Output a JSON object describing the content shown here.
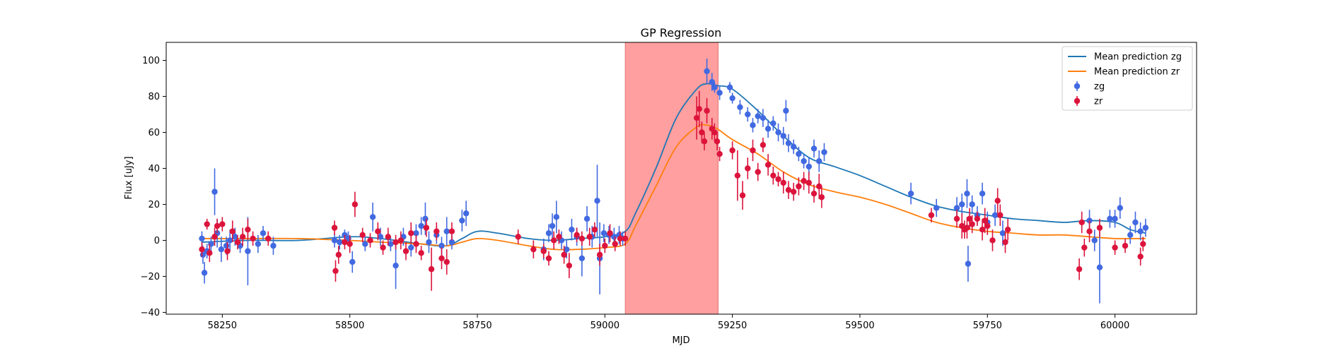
{
  "chart_data": {
    "type": "scatter",
    "title": "GP Regression",
    "xlabel": "MJD",
    "ylabel": "Flux [uJy]",
    "xlim": [
      58140,
      60160
    ],
    "ylim": [
      -41,
      110
    ],
    "xticks": [
      58250,
      58500,
      58750,
      59000,
      59250,
      59500,
      59750,
      60000
    ],
    "yticks": [
      -40,
      -20,
      0,
      20,
      40,
      60,
      80,
      100
    ],
    "legend_position": "upper right",
    "shaded_region": {
      "x0": 59040,
      "x1": 59222,
      "color": "#ff9f9f"
    },
    "lines": [
      {
        "name": "Mean prediction zg",
        "color": "#1f77b4",
        "x": [
          58210,
          58300,
          58400,
          58500,
          58560,
          58640,
          58690,
          58720,
          58750,
          58790,
          58850,
          58900,
          58950,
          59000,
          59040,
          59060,
          59100,
          59140,
          59180,
          59200,
          59220,
          59250,
          59300,
          59350,
          59400,
          59450,
          59500,
          59550,
          59600,
          59650,
          59700,
          59750,
          59800,
          59850,
          59900,
          59950,
          60000,
          60030,
          60060
        ],
        "y": [
          -1,
          0,
          0,
          2,
          1,
          -2,
          -3,
          1,
          5,
          4,
          1,
          0,
          1,
          2,
          5,
          15,
          40,
          68,
          84,
          87,
          86,
          84,
          72,
          58,
          46,
          41,
          36,
          30,
          24,
          19,
          16,
          14,
          12,
          11,
          10,
          11,
          10,
          6,
          4
        ]
      },
      {
        "name": "Mean prediction zr",
        "color": "#ff7f0e",
        "x": [
          58210,
          58300,
          58400,
          58500,
          58560,
          58640,
          58690,
          58720,
          58750,
          58790,
          58850,
          58900,
          58950,
          59000,
          59040,
          59060,
          59100,
          59140,
          59180,
          59200,
          59220,
          59250,
          59300,
          59350,
          59400,
          59450,
          59500,
          59550,
          59600,
          59650,
          59700,
          59750,
          59800,
          59850,
          59900,
          59950,
          60000,
          60030,
          60060
        ],
        "y": [
          1,
          1,
          1,
          0,
          -1,
          -2,
          -3,
          -1,
          1,
          0,
          -3,
          -5,
          -5,
          -4,
          -2,
          8,
          30,
          52,
          63,
          64,
          62,
          56,
          48,
          38,
          31,
          27,
          24,
          20,
          15,
          10,
          7,
          5,
          4,
          3,
          3,
          2,
          1,
          1,
          1
        ]
      }
    ],
    "series": [
      {
        "name": "zg",
        "color": "#4169e1",
        "points": [
          [
            58210,
            1,
            4
          ],
          [
            58212,
            -8,
            5
          ],
          [
            58215,
            -18,
            6
          ],
          [
            58220,
            -6,
            4
          ],
          [
            58228,
            -2,
            4
          ],
          [
            58235,
            27,
            13
          ],
          [
            58240,
            4,
            8
          ],
          [
            58248,
            -5,
            7
          ],
          [
            58258,
            -3,
            5
          ],
          [
            58265,
            0,
            6
          ],
          [
            58275,
            2,
            5
          ],
          [
            58285,
            -3,
            4
          ],
          [
            58300,
            -6,
            19
          ],
          [
            58320,
            -2,
            5
          ],
          [
            58330,
            4,
            4
          ],
          [
            58350,
            -3,
            5
          ],
          [
            58470,
            0,
            4
          ],
          [
            58480,
            -1,
            4
          ],
          [
            58490,
            3,
            3
          ],
          [
            58497,
            1,
            4
          ],
          [
            58505,
            -12,
            6
          ],
          [
            58530,
            -2,
            4
          ],
          [
            58545,
            13,
            8
          ],
          [
            58560,
            2,
            5
          ],
          [
            58580,
            -2,
            4
          ],
          [
            58590,
            -14,
            13
          ],
          [
            58605,
            2,
            5
          ],
          [
            58620,
            -4,
            5
          ],
          [
            58630,
            4,
            5
          ],
          [
            58640,
            8,
            5
          ],
          [
            58648,
            12,
            9
          ],
          [
            58655,
            -1,
            6
          ],
          [
            58670,
            3,
            5
          ],
          [
            58680,
            -3,
            5
          ],
          [
            58690,
            5,
            8
          ],
          [
            58700,
            -1,
            4
          ],
          [
            58720,
            11,
            6
          ],
          [
            58728,
            15,
            7
          ],
          [
            58880,
            -5,
            6
          ],
          [
            58890,
            4,
            5
          ],
          [
            58897,
            8,
            7
          ],
          [
            58905,
            13,
            9
          ],
          [
            58915,
            0,
            5
          ],
          [
            58925,
            -5,
            5
          ],
          [
            58935,
            6,
            6
          ],
          [
            58945,
            2,
            5
          ],
          [
            58955,
            -10,
            10
          ],
          [
            58965,
            12,
            7
          ],
          [
            58975,
            2,
            6
          ],
          [
            58985,
            22,
            20
          ],
          [
            58990,
            -10,
            20
          ],
          [
            58998,
            4,
            5
          ],
          [
            59008,
            3,
            5
          ],
          [
            59018,
            2,
            5
          ],
          [
            59028,
            3,
            5
          ],
          [
            59035,
            1,
            4
          ],
          [
            59200,
            94,
            7
          ],
          [
            59210,
            88,
            5
          ],
          [
            59215,
            85,
            3
          ],
          [
            59225,
            82,
            4
          ],
          [
            59245,
            85,
            3
          ],
          [
            59250,
            79,
            3
          ],
          [
            59265,
            74,
            4
          ],
          [
            59280,
            70,
            4
          ],
          [
            59290,
            64,
            4
          ],
          [
            59300,
            69,
            4
          ],
          [
            59310,
            68,
            5
          ],
          [
            59320,
            62,
            5
          ],
          [
            59330,
            65,
            4
          ],
          [
            59340,
            60,
            5
          ],
          [
            59350,
            58,
            5
          ],
          [
            59355,
            72,
            6
          ],
          [
            59360,
            54,
            5
          ],
          [
            59370,
            52,
            4
          ],
          [
            59380,
            48,
            4
          ],
          [
            59390,
            44,
            4
          ],
          [
            59400,
            41,
            5
          ],
          [
            59410,
            51,
            5
          ],
          [
            59420,
            44,
            6
          ],
          [
            59430,
            49,
            5
          ],
          [
            59600,
            26,
            6
          ],
          [
            59650,
            18,
            5
          ],
          [
            59690,
            18,
            6
          ],
          [
            59700,
            20,
            6
          ],
          [
            59710,
            26,
            8
          ],
          [
            59712,
            -13,
            10
          ],
          [
            59720,
            20,
            5
          ],
          [
            59730,
            14,
            5
          ],
          [
            59740,
            26,
            6
          ],
          [
            59750,
            10,
            6
          ],
          [
            59765,
            14,
            6
          ],
          [
            59780,
            4,
            7
          ],
          [
            59950,
            11,
            6
          ],
          [
            59960,
            0,
            6
          ],
          [
            59970,
            -15,
            20
          ],
          [
            59990,
            12,
            5
          ],
          [
            60000,
            12,
            5
          ],
          [
            60010,
            18,
            6
          ],
          [
            60030,
            3,
            5
          ],
          [
            60040,
            10,
            6
          ],
          [
            60050,
            5,
            5
          ],
          [
            60060,
            7,
            5
          ]
        ]
      },
      {
        "name": "zr",
        "color": "#dc143c",
        "points": [
          [
            58210,
            -5,
            4
          ],
          [
            58220,
            9,
            3
          ],
          [
            58225,
            -7,
            5
          ],
          [
            58235,
            2,
            5
          ],
          [
            58240,
            8,
            4
          ],
          [
            58250,
            9,
            4
          ],
          [
            58260,
            -6,
            5
          ],
          [
            58270,
            5,
            6
          ],
          [
            58280,
            -1,
            4
          ],
          [
            58290,
            2,
            5
          ],
          [
            58300,
            6,
            6
          ],
          [
            58310,
            1,
            4
          ],
          [
            58340,
            1,
            4
          ],
          [
            58470,
            7,
            4
          ],
          [
            58472,
            -17,
            6
          ],
          [
            58478,
            -8,
            5
          ],
          [
            58490,
            -1,
            4
          ],
          [
            58500,
            -2,
            5
          ],
          [
            58510,
            20,
            7
          ],
          [
            58525,
            3,
            4
          ],
          [
            58540,
            0,
            4
          ],
          [
            58555,
            5,
            5
          ],
          [
            58565,
            -4,
            4
          ],
          [
            58575,
            2,
            5
          ],
          [
            58590,
            -1,
            4
          ],
          [
            58600,
            0,
            5
          ],
          [
            58610,
            -6,
            5
          ],
          [
            58620,
            4,
            6
          ],
          [
            58630,
            -2,
            5
          ],
          [
            58640,
            -7,
            4
          ],
          [
            58650,
            7,
            5
          ],
          [
            58660,
            -16,
            12
          ],
          [
            58670,
            5,
            5
          ],
          [
            58680,
            -10,
            6
          ],
          [
            58690,
            -12,
            7
          ],
          [
            58700,
            5,
            5
          ],
          [
            58830,
            2,
            4
          ],
          [
            58860,
            -5,
            5
          ],
          [
            58880,
            -6,
            4
          ],
          [
            58890,
            -10,
            4
          ],
          [
            58900,
            0,
            5
          ],
          [
            58910,
            2,
            4
          ],
          [
            58920,
            -8,
            5
          ],
          [
            58930,
            -14,
            7
          ],
          [
            58945,
            3,
            4
          ],
          [
            58955,
            1,
            4
          ],
          [
            58970,
            2,
            5
          ],
          [
            58980,
            6,
            4
          ],
          [
            58990,
            -8,
            6
          ],
          [
            59000,
            -3,
            4
          ],
          [
            59010,
            4,
            5
          ],
          [
            59020,
            -2,
            4
          ],
          [
            59030,
            1,
            4
          ],
          [
            59040,
            1,
            4
          ],
          [
            59180,
            68,
            12
          ],
          [
            59185,
            73,
            10
          ],
          [
            59190,
            60,
            6
          ],
          [
            59195,
            55,
            5
          ],
          [
            59200,
            72,
            7
          ],
          [
            59210,
            62,
            6
          ],
          [
            59215,
            60,
            5
          ],
          [
            59220,
            55,
            5
          ],
          [
            59225,
            48,
            4
          ],
          [
            59250,
            50,
            5
          ],
          [
            59260,
            36,
            14
          ],
          [
            59270,
            25,
            8
          ],
          [
            59280,
            40,
            6
          ],
          [
            59290,
            50,
            6
          ],
          [
            59300,
            38,
            5
          ],
          [
            59310,
            53,
            4
          ],
          [
            59320,
            42,
            6
          ],
          [
            59330,
            36,
            5
          ],
          [
            59340,
            34,
            4
          ],
          [
            59350,
            32,
            6
          ],
          [
            59360,
            28,
            5
          ],
          [
            59370,
            27,
            5
          ],
          [
            59380,
            30,
            5
          ],
          [
            59390,
            33,
            5
          ],
          [
            59400,
            32,
            6
          ],
          [
            59410,
            26,
            5
          ],
          [
            59420,
            30,
            7
          ],
          [
            59425,
            24,
            6
          ],
          [
            59640,
            14,
            4
          ],
          [
            59690,
            12,
            5
          ],
          [
            59700,
            8,
            7
          ],
          [
            59705,
            6,
            5
          ],
          [
            59710,
            7,
            6
          ],
          [
            59715,
            12,
            6
          ],
          [
            59720,
            9,
            5
          ],
          [
            59730,
            12,
            4
          ],
          [
            59740,
            6,
            6
          ],
          [
            59745,
            11,
            7
          ],
          [
            59750,
            8,
            5
          ],
          [
            59760,
            0,
            6
          ],
          [
            59770,
            22,
            7
          ],
          [
            59775,
            14,
            6
          ],
          [
            59785,
            -1,
            6
          ],
          [
            59790,
            6,
            6
          ],
          [
            59930,
            -16,
            6
          ],
          [
            59935,
            10,
            6
          ],
          [
            59940,
            -4,
            5
          ],
          [
            59950,
            5,
            6
          ],
          [
            59970,
            7,
            5
          ],
          [
            60000,
            -4,
            4
          ],
          [
            60020,
            -3,
            4
          ],
          [
            60050,
            -9,
            5
          ],
          [
            60055,
            -2,
            4
          ]
        ]
      }
    ]
  }
}
